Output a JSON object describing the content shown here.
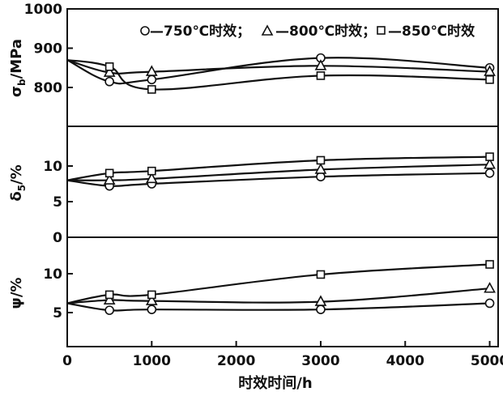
{
  "chart_data": [
    {
      "type": "line",
      "ylabel": "σb/MPa",
      "ylim": [
        750,
        1000
      ],
      "yticks": [
        800,
        900,
        1000
      ],
      "x_shared": [
        0,
        500,
        1000,
        3000,
        5000
      ],
      "series": [
        {
          "name": "750℃时效",
          "marker": "circle",
          "x": [
            0,
            500,
            1000,
            3000,
            5000
          ],
          "values": [
            870,
            815,
            820,
            875,
            850
          ]
        },
        {
          "name": "800℃时效",
          "marker": "triangle",
          "x": [
            0,
            500,
            1000,
            3000,
            5000
          ],
          "values": [
            870,
            838,
            840,
            855,
            840
          ]
        },
        {
          "name": "850℃时效",
          "marker": "square",
          "x": [
            0,
            500,
            1000,
            3000,
            5000
          ],
          "values": [
            870,
            853,
            795,
            830,
            820
          ]
        }
      ]
    },
    {
      "type": "line",
      "ylabel": "δ5/%",
      "ylim": [
        0,
        14
      ],
      "yticks": [
        0,
        5,
        10
      ],
      "series": [
        {
          "name": "750℃时效",
          "marker": "circle",
          "x": [
            0,
            500,
            1000,
            3000,
            5000
          ],
          "values": [
            8,
            7.2,
            7.5,
            8.5,
            9
          ]
        },
        {
          "name": "800℃时效",
          "marker": "triangle",
          "x": [
            0,
            500,
            1000,
            3000,
            5000
          ],
          "values": [
            8,
            8,
            8.2,
            9.5,
            10.2
          ]
        },
        {
          "name": "850℃时效",
          "marker": "square",
          "x": [
            0,
            500,
            1000,
            3000,
            5000
          ],
          "values": [
            8,
            9,
            9.3,
            10.8,
            11.3
          ]
        }
      ]
    },
    {
      "type": "line",
      "ylabel": "ψ/%",
      "ylim": [
        0,
        14
      ],
      "yticks": [
        5,
        10
      ],
      "xlabel": "时效时间/h",
      "xlim": [
        0,
        5100
      ],
      "xticks": [
        0,
        1000,
        2000,
        3000,
        4000,
        5000
      ],
      "series": [
        {
          "name": "750℃时效",
          "marker": "circle",
          "x": [
            0,
            500,
            1000,
            3000,
            5000
          ],
          "values": [
            6.2,
            5.3,
            5.4,
            5.4,
            6.2
          ]
        },
        {
          "name": "800℃时效",
          "marker": "triangle",
          "x": [
            0,
            500,
            1000,
            3000,
            5000
          ],
          "values": [
            6.2,
            6.6,
            6.5,
            6.4,
            8.1
          ]
        },
        {
          "name": "850℃时效",
          "marker": "square",
          "x": [
            0,
            500,
            1000,
            3000,
            5000
          ],
          "values": [
            6.2,
            7.3,
            7.3,
            9.9,
            11.2
          ]
        }
      ]
    }
  ],
  "legend": {
    "items": [
      {
        "sep": "—",
        "label": "750℃时效；"
      },
      {
        "sep": "—",
        "label": "800℃时效；"
      },
      {
        "sep": "—",
        "label": "850℃时效"
      }
    ]
  },
  "axis": {
    "xlabel": "时效时间/h",
    "ylabel_sigma_main": "σ",
    "ylabel_sigma_sub": "b",
    "ylabel_sigma_unit": "/MPa",
    "ylabel_delta_main": "δ",
    "ylabel_delta_sub": "5",
    "ylabel_delta_unit": "/%",
    "ylabel_psi": "ψ/%"
  }
}
